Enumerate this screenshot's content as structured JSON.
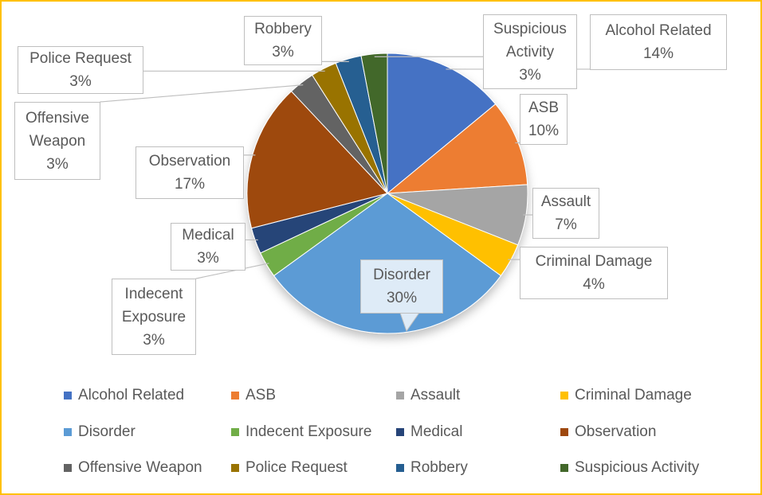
{
  "chart_data": {
    "type": "pie",
    "categories": [
      "Alcohol Related",
      "ASB",
      "Assault",
      "Criminal Damage",
      "Disorder",
      "Indecent Exposure",
      "Medical",
      "Observation",
      "Offensive Weapon",
      "Police Request",
      "Robbery",
      "Suspicious Activity"
    ],
    "values": [
      14,
      10,
      7,
      4,
      30,
      3,
      3,
      17,
      3,
      3,
      3,
      3
    ],
    "value_labels": [
      "14%",
      "10%",
      "7%",
      "4%",
      "30%",
      "3%",
      "3%",
      "17%",
      "3%",
      "3%",
      "3%",
      "3%"
    ],
    "colors": [
      "#4472c4",
      "#ed7d31",
      "#a5a5a5",
      "#ffc000",
      "#5b9bd5",
      "#70ad47",
      "#264478",
      "#9e480e",
      "#636363",
      "#997300",
      "#255e91",
      "#43682b"
    ],
    "legend": "bottom"
  }
}
